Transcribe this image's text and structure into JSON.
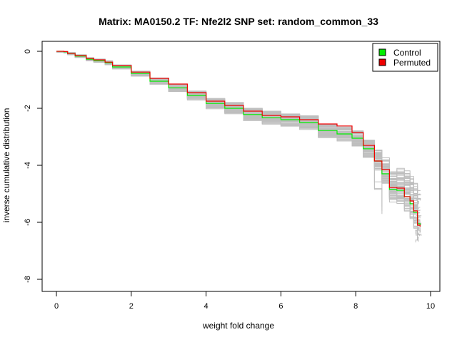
{
  "chart_data": {
    "type": "line",
    "title": "Matrix: MA0150.2 TF: Nfe2l2 SNP set: random_common_33",
    "xlabel": "weight fold change",
    "ylabel": "inverse cumulative distribution",
    "xlim": [
      0,
      10
    ],
    "ylim": [
      -8,
      0
    ],
    "x_ticks": [
      0,
      2,
      4,
      6,
      8,
      10
    ],
    "y_ticks": [
      0,
      -2,
      -4,
      -6,
      -8
    ],
    "grid": false,
    "legend": {
      "placement": "top-right",
      "entries": [
        {
          "label": "Control",
          "color": "#00ee00"
        },
        {
          "label": "Permuted",
          "color": "#ee0000"
        }
      ]
    },
    "background_color": "#bebebe",
    "background_series_count": 60,
    "series": [
      {
        "name": "Control",
        "color": "#00ee00",
        "x": [
          0,
          0.2,
          0.3,
          0.5,
          0.8,
          1.0,
          1.3,
          1.5,
          2.0,
          2.5,
          3.0,
          3.5,
          4.0,
          4.5,
          5.0,
          5.5,
          6.0,
          6.5,
          7.0,
          7.5,
          7.9,
          8.2,
          8.5,
          8.7,
          8.9,
          9.1,
          9.3,
          9.45,
          9.55,
          9.65,
          9.72
        ],
        "y": [
          0,
          -0.02,
          -0.08,
          -0.17,
          -0.28,
          -0.33,
          -0.4,
          -0.55,
          -0.78,
          -1.05,
          -1.28,
          -1.55,
          -1.83,
          -2.0,
          -2.22,
          -2.33,
          -2.4,
          -2.5,
          -2.78,
          -2.9,
          -3.05,
          -3.42,
          -3.85,
          -4.3,
          -4.85,
          -4.88,
          -5.1,
          -5.35,
          -5.65,
          -6.05,
          -6.1
        ]
      },
      {
        "name": "Permuted",
        "color": "#ee0000",
        "x": [
          0,
          0.2,
          0.3,
          0.5,
          0.8,
          1.0,
          1.3,
          1.5,
          2.0,
          2.5,
          3.0,
          3.5,
          4.0,
          4.5,
          5.0,
          5.5,
          6.0,
          6.5,
          7.0,
          7.5,
          7.9,
          8.2,
          8.5,
          8.7,
          8.9,
          9.1,
          9.3,
          9.45,
          9.55,
          9.65,
          9.72
        ],
        "y": [
          0,
          -0.01,
          -0.08,
          -0.15,
          -0.25,
          -0.3,
          -0.38,
          -0.5,
          -0.73,
          -0.95,
          -1.15,
          -1.45,
          -1.75,
          -1.9,
          -2.1,
          -2.25,
          -2.3,
          -2.4,
          -2.55,
          -2.62,
          -2.85,
          -3.3,
          -3.85,
          -4.15,
          -4.78,
          -4.8,
          -5.1,
          -5.25,
          -5.6,
          -6.1,
          -6.15
        ]
      }
    ]
  }
}
